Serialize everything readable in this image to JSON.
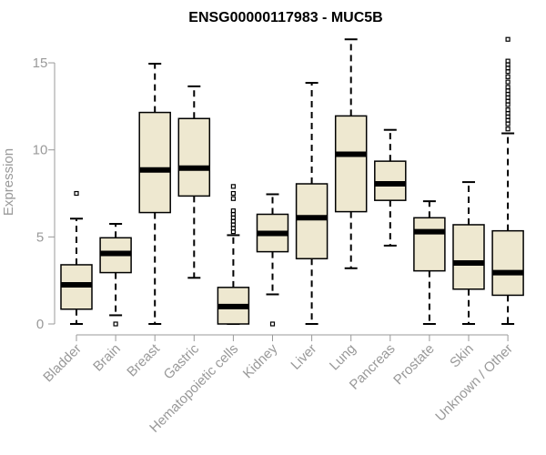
{
  "chart_data": {
    "type": "boxplot",
    "title": "ENSG00000117983 - MUC5B",
    "xlabel": "",
    "ylabel": "Expression",
    "ylim": [
      0,
      16.3
    ],
    "yticks": [
      0,
      5,
      10,
      15
    ],
    "colors": {
      "box_fill": "#eee8d0",
      "stroke": "#000000",
      "axis": "#999999"
    },
    "categories": [
      "Bladder",
      "Brain",
      "Breast",
      "Gastric",
      "Hematopoietic cells",
      "Kidney",
      "Liver",
      "Lung",
      "Pancreas",
      "Prostate",
      "Skin",
      "Unknown / Other"
    ],
    "boxes": [
      {
        "min": 0,
        "q1": 0.85,
        "median": 2.25,
        "q3": 3.4,
        "max": 6.05,
        "outliers": [
          7.5
        ]
      },
      {
        "min": 0.5,
        "q1": 2.95,
        "median": 4.05,
        "q3": 4.95,
        "max": 5.75,
        "outliers": [
          0
        ]
      },
      {
        "min": 0,
        "q1": 6.4,
        "median": 8.85,
        "q3": 12.15,
        "max": 14.95,
        "outliers": []
      },
      {
        "min": 2.65,
        "q1": 7.35,
        "median": 8.95,
        "q3": 11.8,
        "max": 13.65,
        "outliers": []
      },
      {
        "min": 0,
        "q1": 0,
        "median": 1.0,
        "q3": 2.1,
        "max": 5.1,
        "outliers": [
          5.3,
          5.5,
          5.7,
          5.9,
          6.1,
          6.3,
          6.5,
          7.2,
          7.5,
          7.9
        ]
      },
      {
        "min": 1.7,
        "q1": 4.15,
        "median": 5.2,
        "q3": 6.3,
        "max": 7.45,
        "outliers": [
          0
        ]
      },
      {
        "min": 0,
        "q1": 3.75,
        "median": 6.1,
        "q3": 8.05,
        "max": 13.85,
        "outliers": []
      },
      {
        "min": 3.2,
        "q1": 6.45,
        "median": 9.75,
        "q3": 11.95,
        "max": 16.35,
        "outliers": []
      },
      {
        "min": 4.5,
        "q1": 7.1,
        "median": 8.05,
        "q3": 9.35,
        "max": 11.15,
        "outliers": []
      },
      {
        "min": 0,
        "q1": 3.05,
        "median": 5.3,
        "q3": 6.1,
        "max": 7.05,
        "outliers": []
      },
      {
        "min": 0,
        "q1": 2.0,
        "median": 3.5,
        "q3": 5.7,
        "max": 8.15,
        "outliers": []
      },
      {
        "min": 0,
        "q1": 1.65,
        "median": 2.95,
        "q3": 5.35,
        "max": 10.95,
        "outliers": [
          11.2,
          11.5,
          11.7,
          11.9,
          12.1,
          12.3,
          12.6,
          12.8,
          13.0,
          13.2,
          13.4,
          13.6,
          13.9,
          14.2,
          14.5,
          14.7,
          14.9,
          15.1,
          16.35
        ]
      }
    ]
  }
}
